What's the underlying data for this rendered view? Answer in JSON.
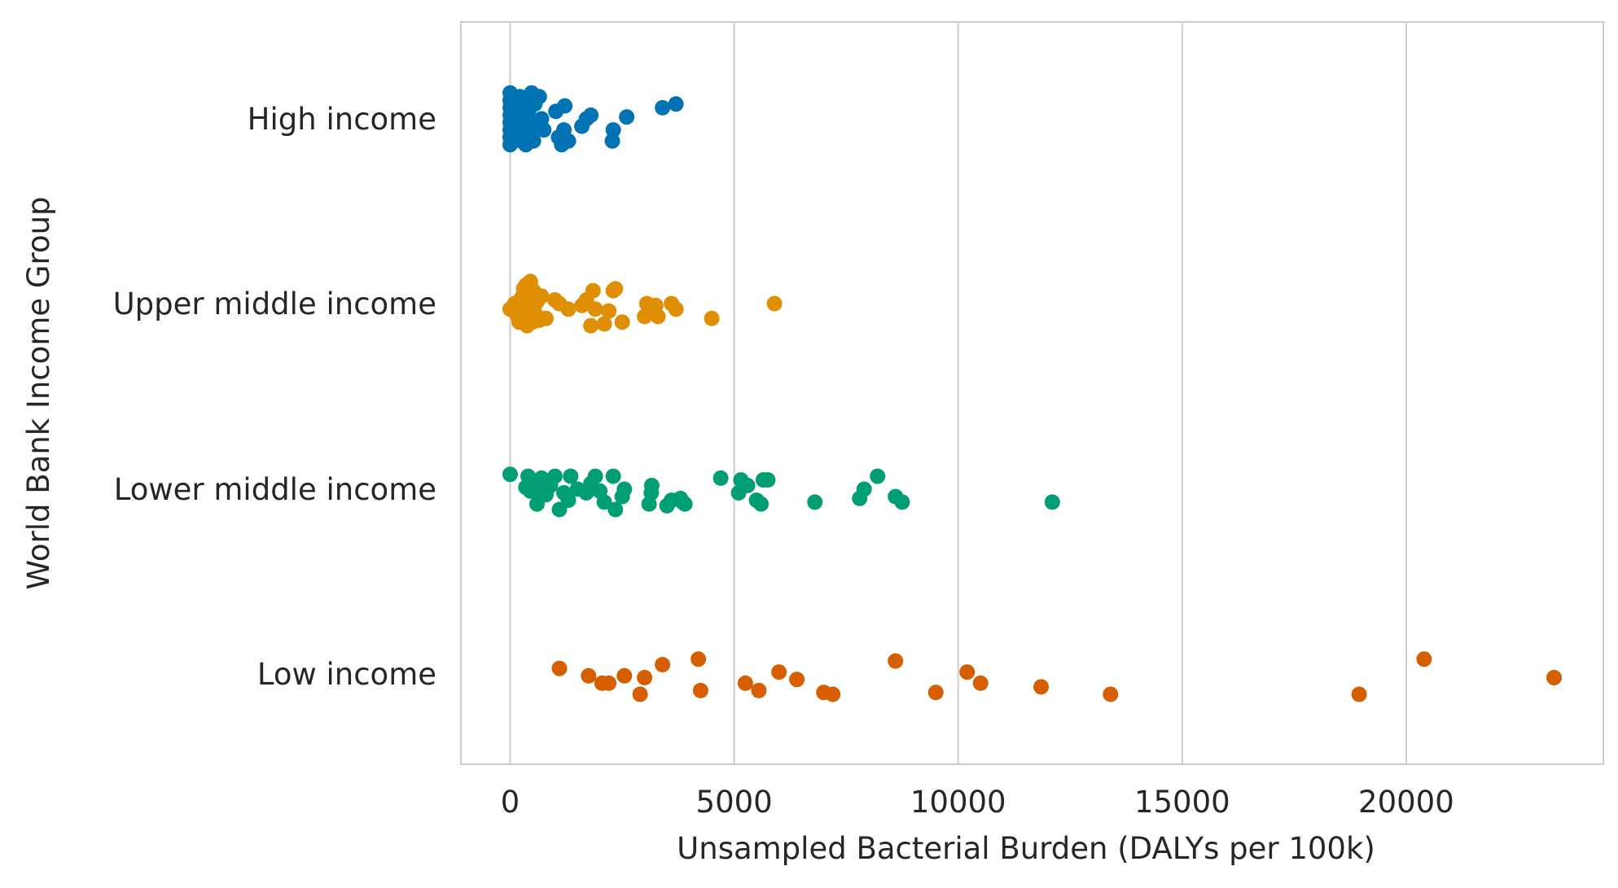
{
  "chart_data": {
    "type": "scatter",
    "subtype": "strip",
    "title": "",
    "xlabel": "Unsampled Bacterial Burden (DALYs per 100k)",
    "ylabel": "World Bank Income Group",
    "xlim": [
      -1100,
      24400
    ],
    "x_ticks": [
      0,
      5000,
      10000,
      15000,
      20000
    ],
    "grid": "vertical",
    "legend": "none",
    "categories": [
      "High income",
      "Upper middle income",
      "Lower middle income",
      "Low income"
    ],
    "series": [
      {
        "color": "#0173b2",
        "points": [
          [
            0,
            -0.14
          ],
          [
            0,
            -0.1
          ],
          [
            0,
            -0.06
          ],
          [
            0,
            -0.02
          ],
          [
            0,
            0.02
          ],
          [
            0,
            0.06
          ],
          [
            0,
            0.1
          ],
          [
            0,
            0.14
          ],
          [
            50,
            -0.12
          ],
          [
            60,
            0.08
          ],
          [
            80,
            0.12
          ],
          [
            100,
            -0.04
          ],
          [
            120,
            0.02
          ],
          [
            150,
            0.1
          ],
          [
            180,
            -0.08
          ],
          [
            200,
            0.04
          ],
          [
            220,
            -0.12
          ],
          [
            250,
            0.12
          ],
          [
            280,
            0.0
          ],
          [
            300,
            -0.06
          ],
          [
            320,
            0.08
          ],
          [
            350,
            0.14
          ],
          [
            380,
            -0.1
          ],
          [
            400,
            0.02
          ],
          [
            420,
            -0.02
          ],
          [
            450,
            0.1
          ],
          [
            480,
            -0.14
          ],
          [
            500,
            0.06
          ],
          [
            520,
            0.12
          ],
          [
            550,
            -0.08
          ],
          [
            600,
            0.04
          ],
          [
            650,
            -0.12
          ],
          [
            700,
            0.0
          ],
          [
            750,
            0.06
          ],
          [
            1020,
            -0.04
          ],
          [
            1080,
            0.1
          ],
          [
            1150,
            0.14
          ],
          [
            1200,
            0.06
          ],
          [
            1220,
            -0.07
          ],
          [
            1300,
            0.12
          ],
          [
            1600,
            0.04
          ],
          [
            1700,
            0.0
          ],
          [
            1800,
            -0.02
          ],
          [
            2280,
            0.12
          ],
          [
            2300,
            0.06
          ],
          [
            2600,
            -0.01
          ],
          [
            3400,
            -0.06
          ],
          [
            3700,
            -0.08
          ]
        ]
      },
      {
        "color": "#de8f05",
        "points": [
          [
            0,
            0.03
          ],
          [
            100,
            0.0
          ],
          [
            150,
            0.06
          ],
          [
            200,
            0.1
          ],
          [
            250,
            -0.03
          ],
          [
            300,
            -0.08
          ],
          [
            320,
            0.04
          ],
          [
            350,
            -0.1
          ],
          [
            380,
            0.12
          ],
          [
            400,
            -0.05
          ],
          [
            420,
            0.08
          ],
          [
            450,
            -0.12
          ],
          [
            480,
            0.02
          ],
          [
            500,
            0.1
          ],
          [
            520,
            -0.07
          ],
          [
            550,
            0.05
          ],
          [
            600,
            -0.01
          ],
          [
            650,
            0.09
          ],
          [
            700,
            -0.04
          ],
          [
            800,
            0.08
          ],
          [
            1000,
            -0.02
          ],
          [
            1100,
            0.0
          ],
          [
            1300,
            0.03
          ],
          [
            1600,
            0.01
          ],
          [
            1700,
            -0.02
          ],
          [
            1800,
            0.12
          ],
          [
            1850,
            -0.07
          ],
          [
            1900,
            0.03
          ],
          [
            2100,
            0.11
          ],
          [
            2200,
            0.04
          ],
          [
            2300,
            -0.07
          ],
          [
            2350,
            -0.08
          ],
          [
            2500,
            0.1
          ],
          [
            3000,
            0.07
          ],
          [
            3050,
            0.0
          ],
          [
            3150,
            0.05
          ],
          [
            3250,
            0.01
          ],
          [
            3300,
            0.07
          ],
          [
            3600,
            0.0
          ],
          [
            3700,
            0.03
          ],
          [
            4500,
            0.08
          ],
          [
            5900,
            0.0
          ]
        ]
      },
      {
        "color": "#029e73",
        "points": [
          [
            0,
            -0.08
          ],
          [
            350,
            -0.01
          ],
          [
            400,
            -0.07
          ],
          [
            450,
            0.01
          ],
          [
            550,
            -0.02
          ],
          [
            600,
            0.08
          ],
          [
            650,
            0.04
          ],
          [
            700,
            -0.06
          ],
          [
            750,
            0.02
          ],
          [
            800,
            0.03
          ],
          [
            900,
            -0.02
          ],
          [
            1000,
            -0.07
          ],
          [
            1100,
            0.11
          ],
          [
            1200,
            0.02
          ],
          [
            1300,
            0.06
          ],
          [
            1350,
            -0.07
          ],
          [
            1500,
            0.0
          ],
          [
            1700,
            0.02
          ],
          [
            1800,
            -0.03
          ],
          [
            1900,
            -0.07
          ],
          [
            2000,
            0.01
          ],
          [
            2100,
            0.07
          ],
          [
            2300,
            -0.07
          ],
          [
            2350,
            0.11
          ],
          [
            2500,
            0.04
          ],
          [
            2550,
            0.0
          ],
          [
            3100,
            0.08
          ],
          [
            3150,
            0.02
          ],
          [
            3160,
            -0.02
          ],
          [
            3500,
            0.09
          ],
          [
            3600,
            0.06
          ],
          [
            3800,
            0.05
          ],
          [
            3850,
            0.07
          ],
          [
            3900,
            0.08
          ],
          [
            4700,
            -0.06
          ],
          [
            5100,
            0.02
          ],
          [
            5150,
            -0.05
          ],
          [
            5300,
            -0.02
          ],
          [
            5500,
            0.06
          ],
          [
            5600,
            0.08
          ],
          [
            5650,
            -0.05
          ],
          [
            5750,
            -0.05
          ],
          [
            6800,
            0.07
          ],
          [
            7800,
            0.05
          ],
          [
            7900,
            0.0
          ],
          [
            8200,
            -0.07
          ],
          [
            8600,
            0.04
          ],
          [
            8750,
            0.07
          ],
          [
            12100,
            0.07
          ]
        ]
      },
      {
        "color": "#d55e00",
        "points": [
          [
            1100,
            -0.03
          ],
          [
            1750,
            0.01
          ],
          [
            2050,
            0.05
          ],
          [
            2200,
            0.05
          ],
          [
            2550,
            0.01
          ],
          [
            2900,
            0.11
          ],
          [
            3000,
            0.02
          ],
          [
            3400,
            -0.05
          ],
          [
            4200,
            -0.08
          ],
          [
            4250,
            0.09
          ],
          [
            5250,
            0.05
          ],
          [
            5550,
            0.09
          ],
          [
            6000,
            -0.01
          ],
          [
            6400,
            0.03
          ],
          [
            7000,
            0.1
          ],
          [
            7200,
            0.11
          ],
          [
            8600,
            -0.07
          ],
          [
            9500,
            0.1
          ],
          [
            10200,
            -0.01
          ],
          [
            10500,
            0.05
          ],
          [
            11850,
            0.07
          ],
          [
            13400,
            0.11
          ],
          [
            18950,
            0.11
          ],
          [
            20400,
            -0.08
          ],
          [
            23300,
            0.02
          ]
        ]
      }
    ]
  }
}
